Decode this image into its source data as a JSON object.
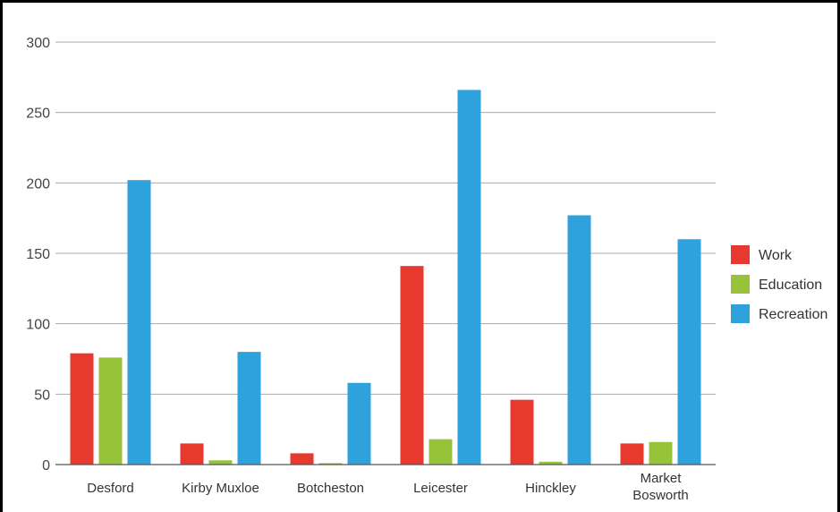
{
  "chart_data": {
    "type": "bar",
    "categories": [
      [
        "Desford"
      ],
      [
        "Kirby Muxloe"
      ],
      [
        "Botcheston"
      ],
      [
        "Leicester"
      ],
      [
        "Hinckley"
      ],
      [
        "Market",
        "Bosworth"
      ]
    ],
    "series": [
      {
        "name": "Work",
        "color": "#e8392e",
        "values": [
          79,
          15,
          8,
          141,
          46,
          15
        ]
      },
      {
        "name": "Education",
        "color": "#97c33b",
        "values": [
          76,
          3,
          1,
          18,
          2,
          16
        ]
      },
      {
        "name": "Recreation",
        "color": "#2ea2dc",
        "values": [
          202,
          80,
          58,
          266,
          177,
          160
        ]
      }
    ],
    "yticks": [
      0,
      50,
      100,
      150,
      200,
      250,
      300
    ],
    "ylim": [
      0,
      300
    ],
    "grid": true,
    "legend": "right",
    "title": "",
    "xlabel": "",
    "ylabel": ""
  }
}
